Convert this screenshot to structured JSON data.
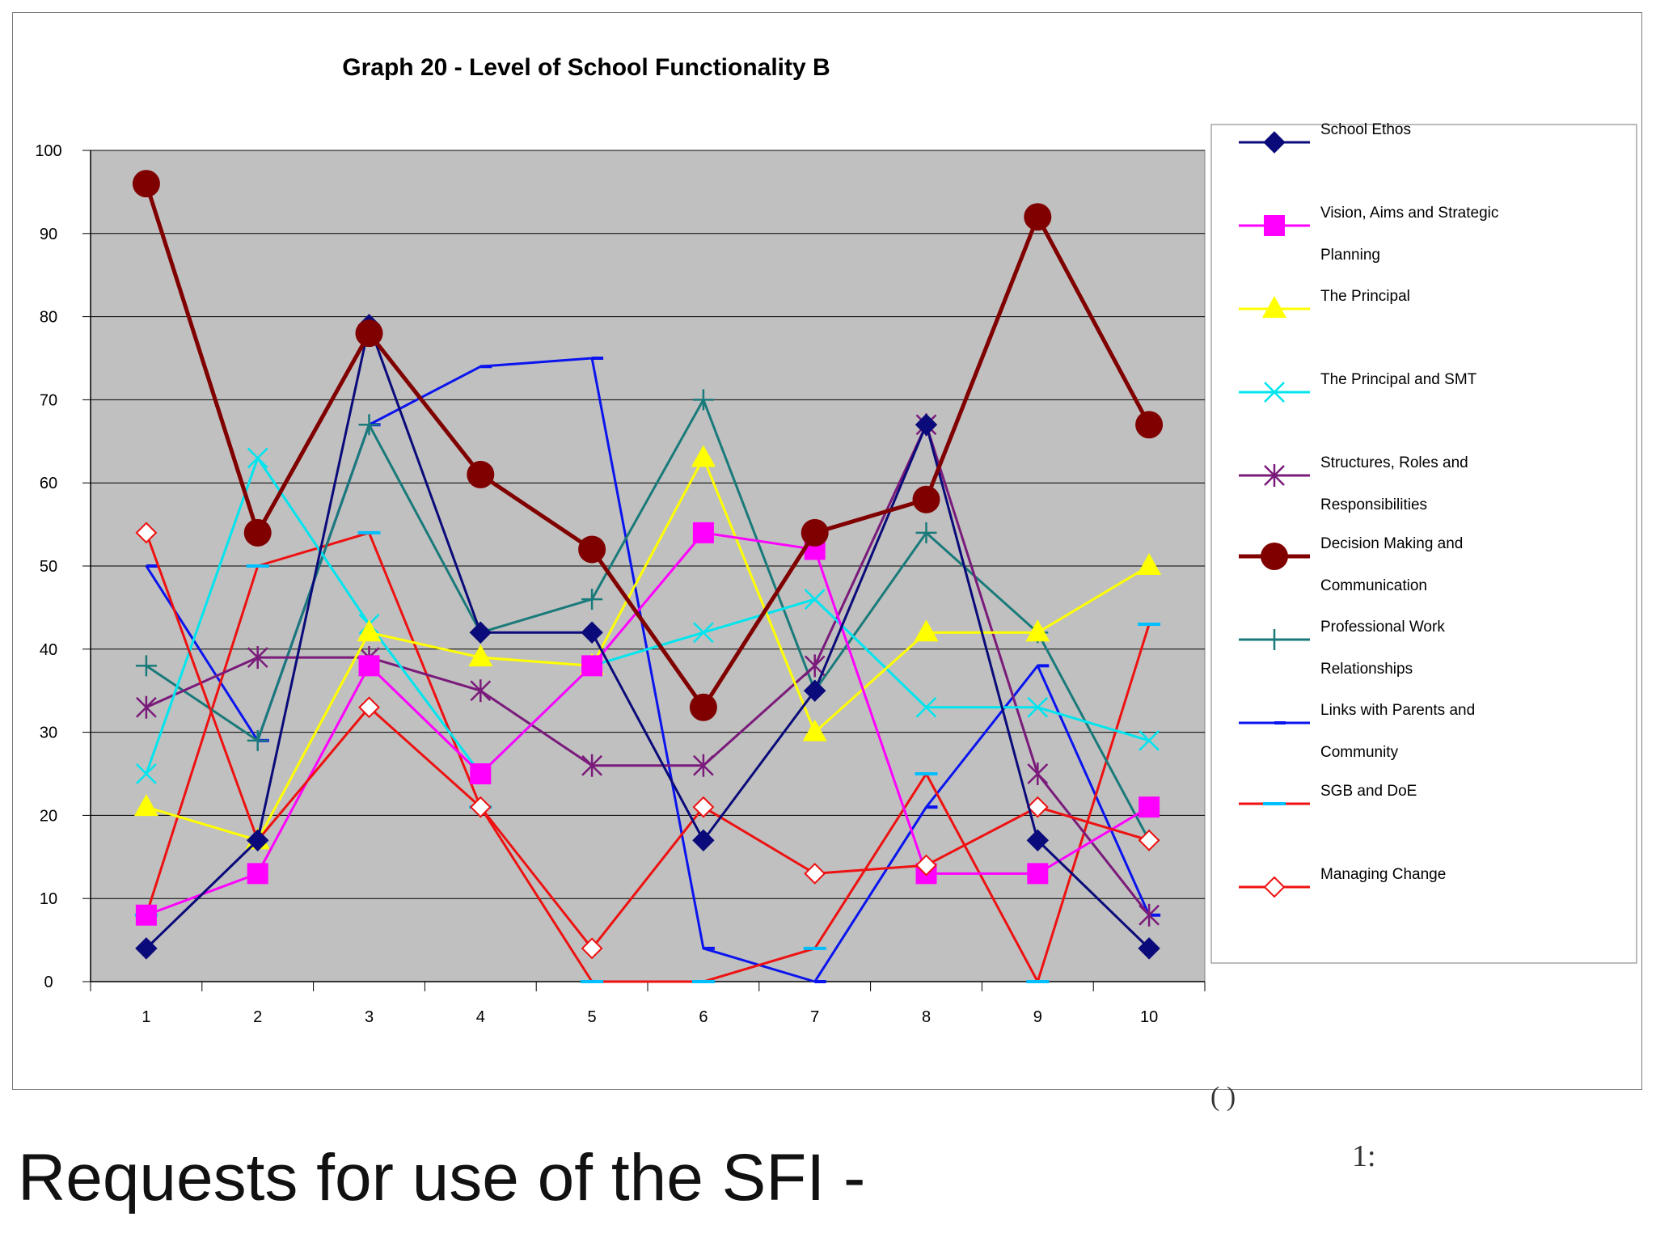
{
  "chart_data": {
    "type": "line",
    "title": "Graph 20 - Level of School Functionality B",
    "xlabel": "",
    "ylabel": "",
    "categories": [
      "1",
      "2",
      "3",
      "4",
      "5",
      "6",
      "7",
      "8",
      "9",
      "10"
    ],
    "ylim": [
      0,
      100
    ],
    "yticks": [
      0,
      10,
      20,
      30,
      40,
      50,
      60,
      70,
      80,
      90,
      100
    ],
    "grid": true,
    "legend_position": "right",
    "series": [
      {
        "name": "School Ethos",
        "color": "#0a0a7a",
        "marker": "diamond",
        "values": [
          4,
          17,
          79,
          42,
          42,
          17,
          35,
          67,
          17,
          4
        ]
      },
      {
        "name": "Vision, Aims and Strategic Planning",
        "color": "#ff00ff",
        "marker": "square",
        "values": [
          8,
          13,
          38,
          25,
          38,
          54,
          52,
          13,
          13,
          21
        ]
      },
      {
        "name": "The Principal",
        "color": "#ffff00",
        "marker": "triangle",
        "values": [
          21,
          17,
          42,
          39,
          38,
          63,
          30,
          42,
          42,
          50
        ]
      },
      {
        "name": "The Principal and SMT",
        "color": "#00e5ee",
        "marker": "x",
        "values": [
          25,
          63,
          43,
          25,
          38,
          42,
          46,
          33,
          33,
          29
        ]
      },
      {
        "name": "Structures, Roles and Responsibilities",
        "color": "#7a1a7a",
        "marker": "star",
        "values": [
          33,
          39,
          39,
          35,
          26,
          26,
          38,
          67,
          25,
          8
        ]
      },
      {
        "name": "Decision Making and Communication",
        "color": "#800000",
        "marker": "circle",
        "values": [
          96,
          54,
          78,
          61,
          52,
          33,
          54,
          58,
          92,
          67
        ]
      },
      {
        "name": "Professional Work Relationships",
        "color": "#1a7a7a",
        "marker": "plus",
        "values": [
          38,
          29,
          67,
          42,
          46,
          70,
          35,
          54,
          42,
          17
        ]
      },
      {
        "name": "Links with Parents and Community",
        "color": "#0a14ee",
        "marker": "dash",
        "values": [
          50,
          29,
          67,
          74,
          75,
          4,
          0,
          21,
          38,
          8
        ]
      },
      {
        "name": "SGB and DoE",
        "color": "#ee1111",
        "marker": "cyan-dash",
        "values": [
          8,
          50,
          54,
          21,
          0,
          0,
          4,
          25,
          0,
          43
        ]
      },
      {
        "name": "Managing Change",
        "color": "#ee1111",
        "marker": "open-diamond",
        "values": [
          54,
          17,
          33,
          21,
          4,
          21,
          13,
          14,
          21,
          17
        ]
      }
    ],
    "legend_lines": [
      [
        "School Ethos"
      ],
      [
        "Vision, Aims and Strategic",
        "Planning"
      ],
      [
        "The Principal"
      ],
      [
        "The Principal and SMT"
      ],
      [
        "Structures, Roles and",
        "Responsibilities"
      ],
      [
        "Decision Making and",
        "Communication"
      ],
      [
        "Professional Work",
        "Relationships"
      ],
      [
        "Links with Parents and",
        "Community"
      ],
      [
        "SGB and DoE"
      ],
      [
        "Managing Change"
      ]
    ]
  },
  "slide": {
    "heading": "Requests for use of the SFI -",
    "footnote": "1:",
    "bracket": "(     )"
  }
}
